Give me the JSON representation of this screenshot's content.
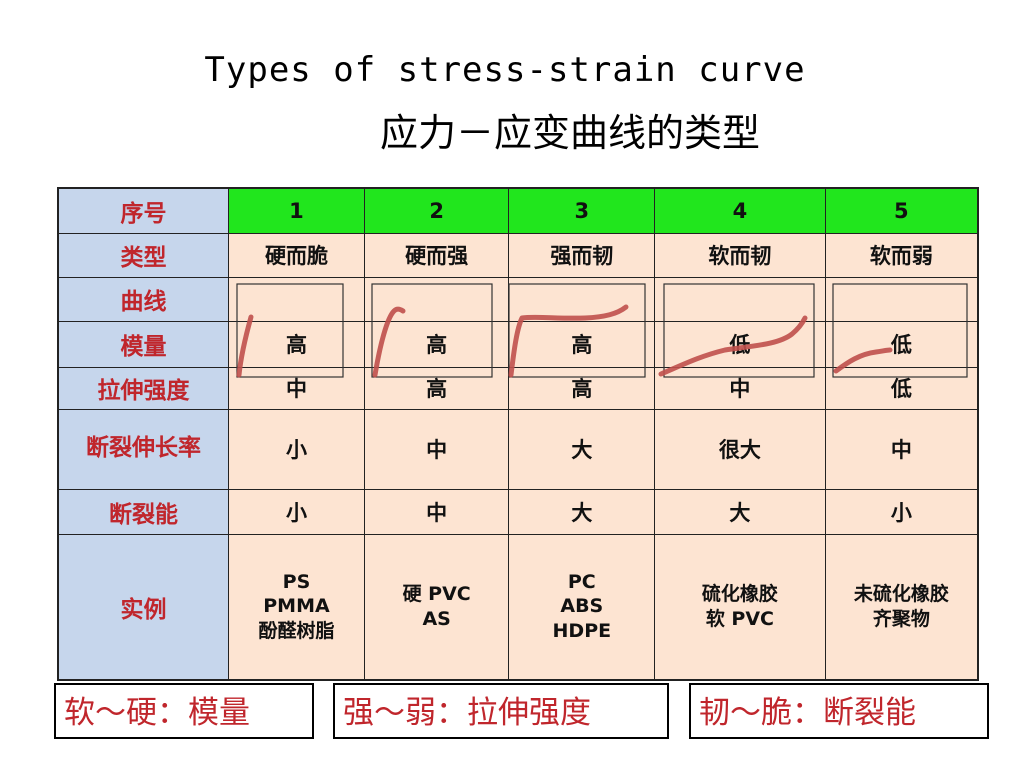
{
  "title_en": "Types of stress-strain curve",
  "title_zh": "应力－应变曲线的类型",
  "table": {
    "row_labels": [
      "序号",
      "类型",
      "曲线",
      "模量",
      "拉伸强度",
      "断裂伸长率",
      "断裂能",
      "实例"
    ],
    "numbers": [
      "1",
      "2",
      "3",
      "4",
      "5"
    ],
    "types": [
      "硬而脆",
      "硬而强",
      "强而韧",
      "软而韧",
      "软而弱"
    ],
    "modulus": [
      "高",
      "高",
      "高",
      "低",
      "低"
    ],
    "tensile_strength": [
      "中",
      "高",
      "高",
      "中",
      "低"
    ],
    "elongation": [
      "小",
      "中",
      "大",
      "很大",
      "中"
    ],
    "fracture_energy": [
      "小",
      "中",
      "大",
      "大",
      "小"
    ],
    "examples": [
      [
        "PS",
        "PMMA",
        "酚醛树脂"
      ],
      [
        "硬 PVC",
        "AS"
      ],
      [
        "PC",
        "ABS",
        "HDPE"
      ],
      [
        "硫化橡胶",
        "软 PVC"
      ],
      [
        "未硫化橡胶",
        "齐聚物"
      ]
    ]
  },
  "legend_boxes": [
    "软～硬：模量",
    "强～弱：拉伸强度",
    "韧～脆：断裂能"
  ],
  "colors": {
    "header_blue": "#c6d6ec",
    "number_green": "#21e61d",
    "cell_peach": "#fde4d2",
    "label_red": "#c0262c",
    "curve_red": "#c0504d"
  }
}
